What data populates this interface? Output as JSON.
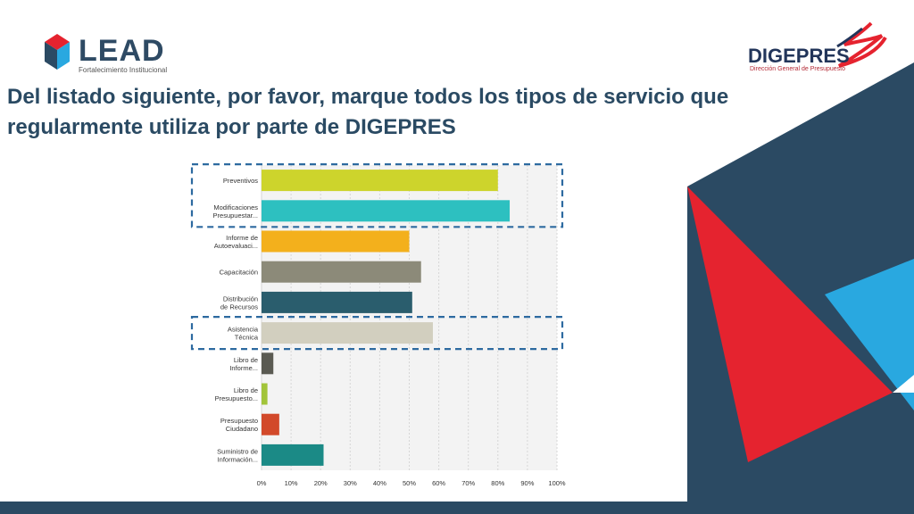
{
  "slide": {
    "title": "Del listado siguiente, por favor, marque todos los tipos de servicio que regularmente utiliza por parte de DIGEPRES"
  },
  "logos": {
    "lead": {
      "name": "LEAD",
      "subtitle": "Fortalecimiento Institucional"
    },
    "digepres": {
      "name": "DIGEPRES",
      "subtitle": "Dirección General de Presupuesto"
    }
  },
  "colors": {
    "navy": "#2b4a63",
    "red": "#e5232f",
    "blue": "#29a8e0",
    "highlight_box": "#2d6aa0"
  },
  "chart_data": {
    "type": "bar",
    "orientation": "horizontal",
    "categories": [
      [
        "Preventivos"
      ],
      [
        "Modificaciones",
        "Presupuestar..."
      ],
      [
        "Informe de",
        "Autoevaluaci..."
      ],
      [
        "Capacitación"
      ],
      [
        "Distribución",
        "de Recursos"
      ],
      [
        "Asistencia",
        "Técnica"
      ],
      [
        "Libro de",
        "Informe..."
      ],
      [
        "Libro de",
        "Presupuesto..."
      ],
      [
        "Presupuesto",
        "Ciudadano"
      ],
      [
        "Suministro de",
        "Información..."
      ]
    ],
    "values": [
      80,
      84,
      50,
      54,
      51,
      58,
      4,
      2,
      6,
      21
    ],
    "colors": [
      "#cdd42c",
      "#2dc0c0",
      "#f3b01c",
      "#8c8a79",
      "#2a5d6d",
      "#d2cfbf",
      "#5a5a52",
      "#a2c43a",
      "#d2492a",
      "#1b8a86"
    ],
    "xlim": [
      0,
      100
    ],
    "xticks": [
      "0%",
      "10%",
      "20%",
      "30%",
      "40%",
      "50%",
      "60%",
      "70%",
      "80%",
      "90%",
      "100%"
    ],
    "grid": true,
    "highlighted_groups": [
      [
        0,
        1
      ],
      [
        5
      ]
    ]
  }
}
